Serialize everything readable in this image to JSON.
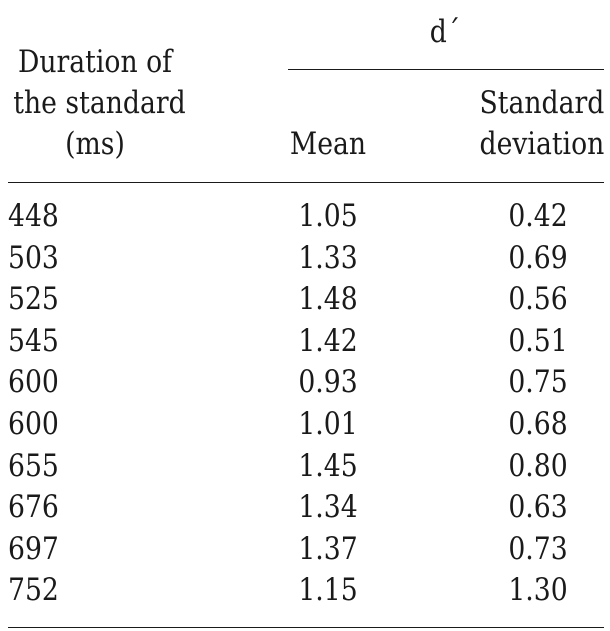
{
  "table": {
    "header": {
      "duration_line1": "Duration of",
      "duration_line2": "the standard",
      "duration_line3": "(ms)",
      "group": "d´",
      "mean": "Mean",
      "sd_line1": "Standard",
      "sd_line2": "deviation"
    },
    "rows": [
      {
        "duration": "448",
        "mean": "1.05",
        "sd": "0.42"
      },
      {
        "duration": "503",
        "mean": "1.33",
        "sd": "0.69"
      },
      {
        "duration": "525",
        "mean": "1.48",
        "sd": "0.56"
      },
      {
        "duration": "545",
        "mean": "1.42",
        "sd": "0.51"
      },
      {
        "duration": "600",
        "mean": "0.93",
        "sd": "0.75"
      },
      {
        "duration": "600",
        "mean": "1.01",
        "sd": "0.68"
      },
      {
        "duration": "655",
        "mean": "1.45",
        "sd": "0.80"
      },
      {
        "duration": "676",
        "mean": "1.34",
        "sd": "0.63"
      },
      {
        "duration": "697",
        "mean": "1.37",
        "sd": "0.73"
      },
      {
        "duration": "752",
        "mean": "1.15",
        "sd": "1.30"
      }
    ]
  }
}
